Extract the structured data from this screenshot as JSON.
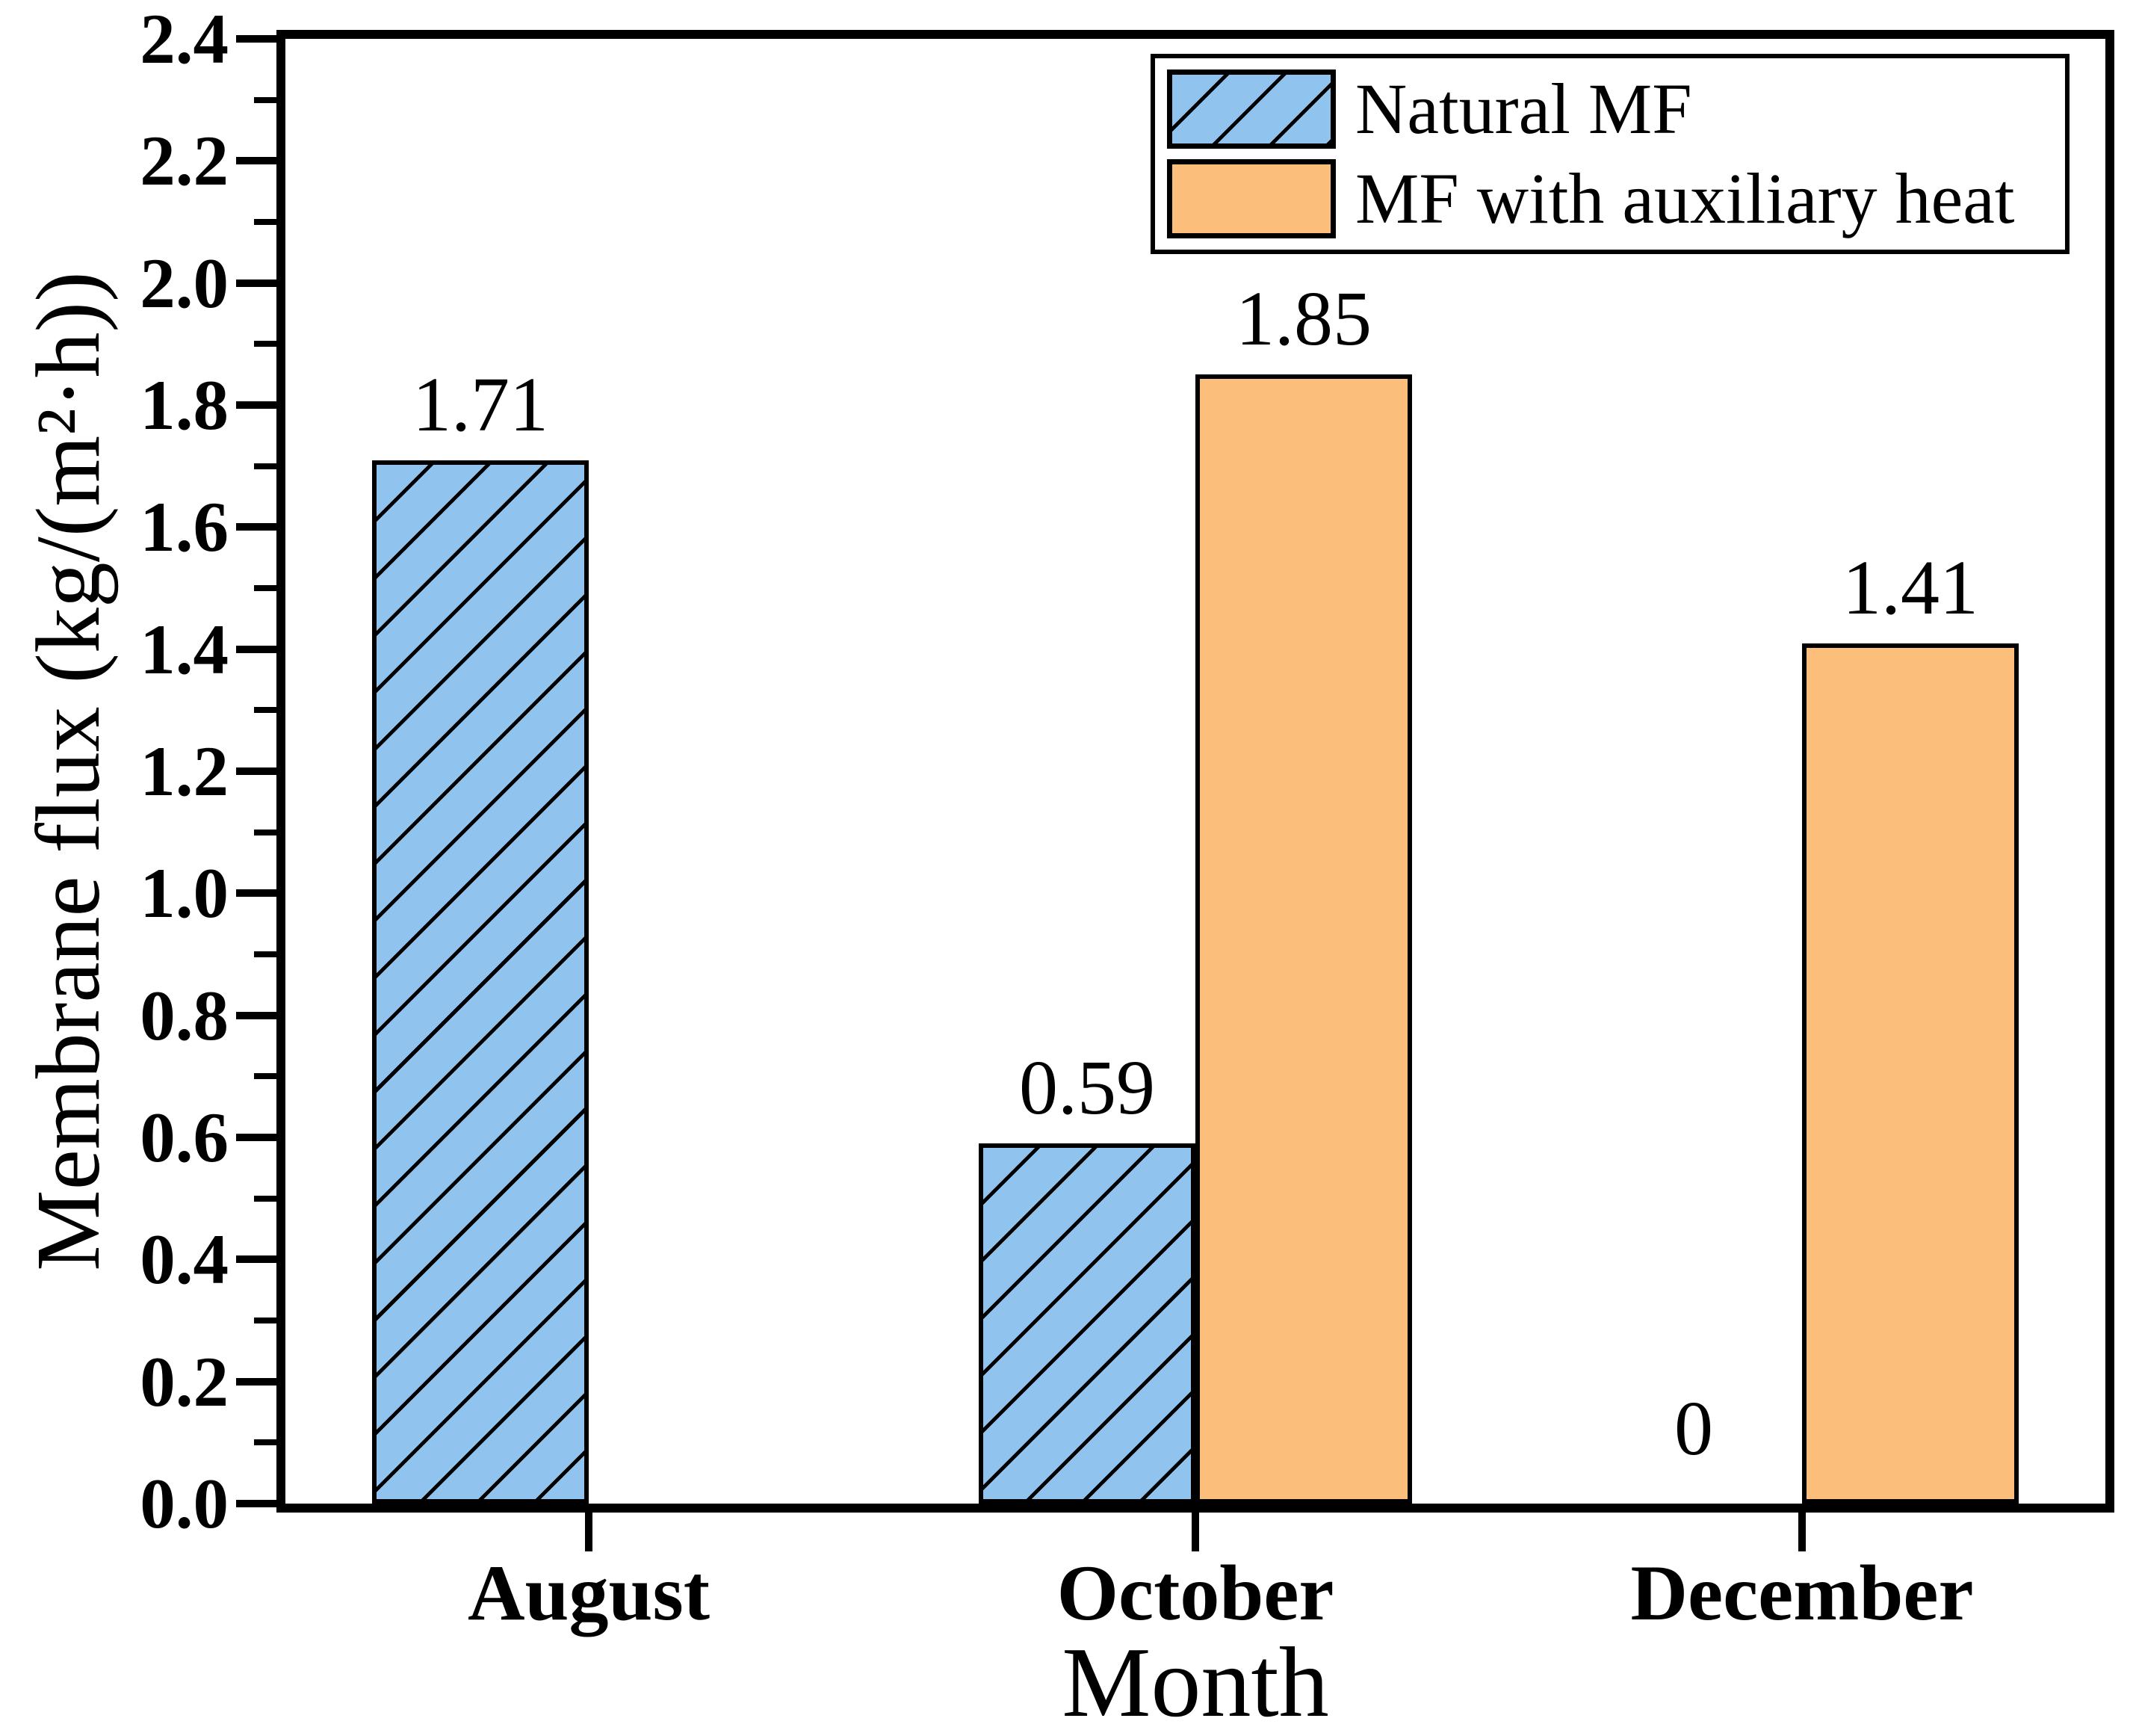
{
  "chart_data": {
    "type": "bar",
    "title": "",
    "categories": [
      "August",
      "October",
      "December"
    ],
    "series": [
      {
        "name": "Natural MF",
        "values": [
          1.71,
          0.59,
          0
        ],
        "labels": [
          "1.71",
          "0.59",
          "0"
        ],
        "color": "#90C4EE",
        "hatch": "diagonal",
        "border_color": "#000000"
      },
      {
        "name": "MF with auxiliary heat",
        "values": [
          null,
          1.85,
          1.41
        ],
        "labels": [
          "",
          "1.85",
          "1.41"
        ],
        "color": "#FBBE7B",
        "hatch": "none",
        "border_color": "#000000"
      }
    ],
    "xlabel": "Month",
    "ylabel": "Membrane flux (kg/(m²·h))",
    "ylim": [
      0,
      2.4
    ],
    "y_major_step": 0.2,
    "y_minor_step": 0.1,
    "y_tick_labels": [
      "0.0",
      "0.2",
      "0.4",
      "0.6",
      "0.8",
      "1.0",
      "1.2",
      "1.4",
      "1.6",
      "1.8",
      "2.0",
      "2.2",
      "2.4"
    ],
    "legend_position": "top-right",
    "grid": false,
    "bar_value_color": "#000000",
    "axis_color": "#000000"
  }
}
